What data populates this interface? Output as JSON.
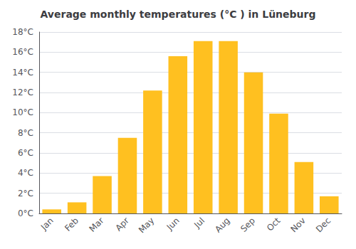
{
  "chart_data": {
    "type": "bar",
    "title": "Average monthly temperatures (°C ) in Lüneburg",
    "categories": [
      "Jan",
      "Feb",
      "Mar",
      "Apr",
      "May",
      "Jun",
      "Jul",
      "Aug",
      "Sep",
      "Oct",
      "Nov",
      "Dec"
    ],
    "values": [
      0.4,
      1.1,
      3.7,
      7.5,
      12.2,
      15.6,
      17.1,
      17.1,
      14.0,
      9.9,
      5.1,
      1.7
    ],
    "color": "#FFC020",
    "ylim": [
      0,
      18
    ],
    "yticks": [
      {
        "value": 0,
        "label": "0°C"
      },
      {
        "value": 2,
        "label": "2°C"
      },
      {
        "value": 4,
        "label": "4°C"
      },
      {
        "value": 6,
        "label": "6°C"
      },
      {
        "value": 8,
        "label": "8°C"
      },
      {
        "value": 10,
        "label": "10°C"
      },
      {
        "value": 12,
        "label": "12°C"
      },
      {
        "value": 14,
        "label": "14°C"
      },
      {
        "value": 16,
        "label": "16°C"
      },
      {
        "value": 18,
        "label": "18°C"
      }
    ],
    "grid": true
  }
}
